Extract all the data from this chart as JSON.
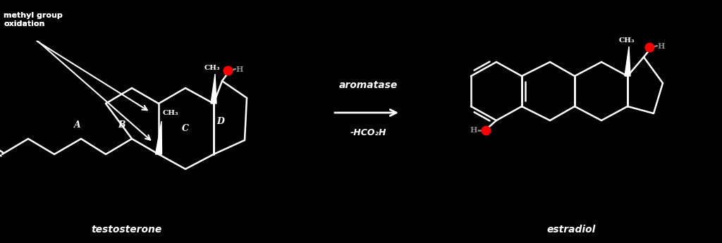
{
  "bg_color": "#000000",
  "text_color": "#ffffff",
  "red_color": "#ff0000",
  "gray_color": "#888888",
  "title_testosterone": "testosterone",
  "title_estradiol": "estradiol",
  "label_methyl_group": "methyl group\noxidation",
  "label_aromatase": "aromatase",
  "label_byproduct": "-HCO₂H",
  "label_A": "A",
  "label_B": "B",
  "label_C": "C",
  "label_D": "D",
  "label_CH3_1": "CH₃",
  "label_CH3_2": "CH₃",
  "label_CH3_3": "CH₃",
  "label_H_1": "H",
  "label_H_2": "H",
  "figsize": [
    10.24,
    3.45
  ],
  "dpi": 100
}
